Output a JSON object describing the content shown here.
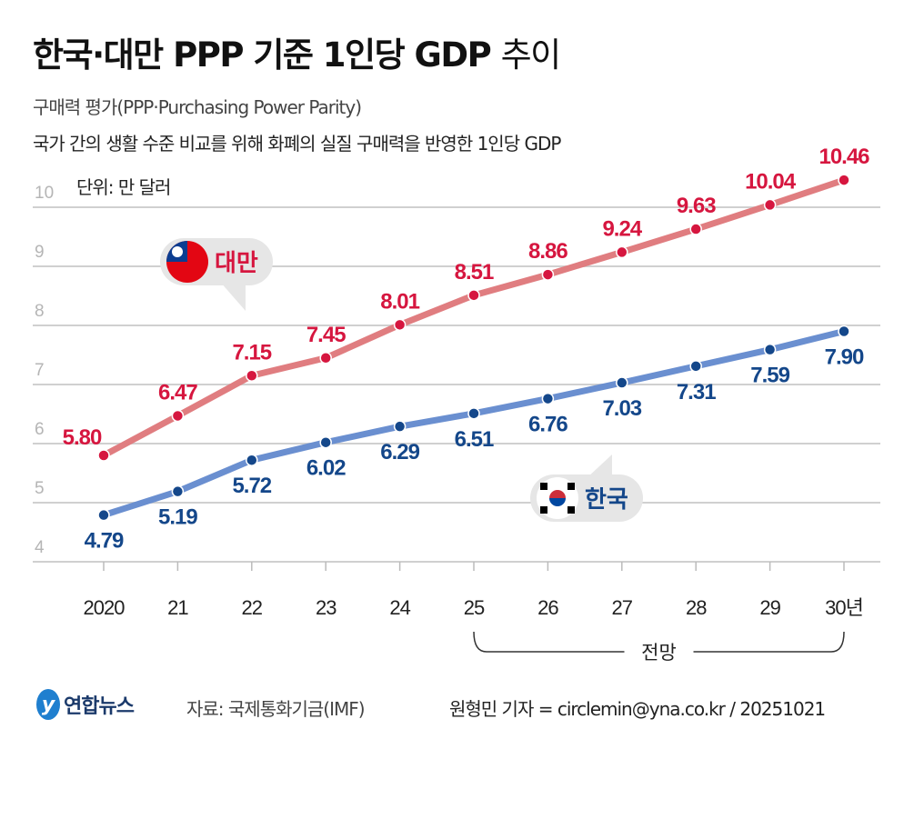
{
  "title": {
    "bold": "한국·대만 PPP 기준 1인당 GDP",
    "light": "추이"
  },
  "subtitle": "구매력 평가(PPP·Purchasing Power Parity)",
  "description": "국가 간의 생활 수준 비교를 위해 화폐의 실질 구매력을 반영한 1인당 GDP",
  "unit": "단위: 만 달러",
  "chart_data": {
    "type": "line",
    "categories": [
      "2020",
      "21",
      "22",
      "23",
      "24",
      "25",
      "26",
      "27",
      "28",
      "29",
      "30년"
    ],
    "yticks": [
      "4",
      "5",
      "6",
      "7",
      "8",
      "9",
      "10"
    ],
    "ylim": [
      4,
      10
    ],
    "grid": true,
    "series": [
      {
        "name": "대만",
        "color": "#e07d80",
        "dot_color": "#d6163f",
        "label_color": "#d6163f",
        "values": [
          5.8,
          6.47,
          7.15,
          7.45,
          8.01,
          8.51,
          8.86,
          9.24,
          9.63,
          10.04,
          10.46
        ]
      },
      {
        "name": "한국",
        "color": "#6a8fd0",
        "dot_color": "#14478a",
        "label_color": "#14478a",
        "values": [
          4.79,
          5.19,
          5.72,
          6.02,
          6.29,
          6.51,
          6.76,
          7.03,
          7.31,
          7.59,
          7.9
        ]
      }
    ],
    "forecast_label": "전망",
    "forecast_from": "25"
  },
  "footer": {
    "logo": "연합뉴스",
    "source": "자료: 국제통화기금(IMF)",
    "credit": "원형민 기자 = circlemin@yna.co.kr / 20251021"
  }
}
